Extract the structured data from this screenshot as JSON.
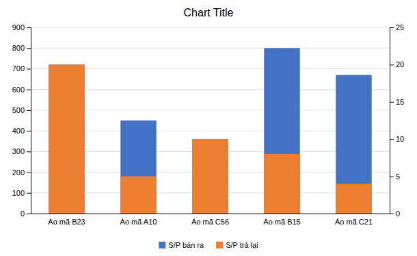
{
  "chart_data": {
    "type": "bar",
    "title": "Chart Title",
    "categories": [
      "Áo mã B23",
      "Áo mã A10",
      "Áo mã C56",
      "Áo mã B15",
      "Áo mã C21"
    ],
    "series": [
      {
        "name": "S/P bán ra",
        "color": "#4472C4",
        "values": [
          720,
          450,
          360,
          800,
          670
        ]
      },
      {
        "name": "S/P trả lại",
        "color": "#ED7D31",
        "values": [
          20,
          5,
          10,
          8,
          4
        ],
        "axis": "y2"
      }
    ],
    "ylim": [
      0,
      900
    ],
    "yticks": [
      0,
      100,
      200,
      300,
      400,
      500,
      600,
      700,
      800,
      900
    ],
    "y2lim": [
      0,
      25
    ],
    "y2ticks": [
      0,
      5,
      10,
      15,
      20,
      25
    ],
    "grid": true,
    "legend": "bottom"
  }
}
